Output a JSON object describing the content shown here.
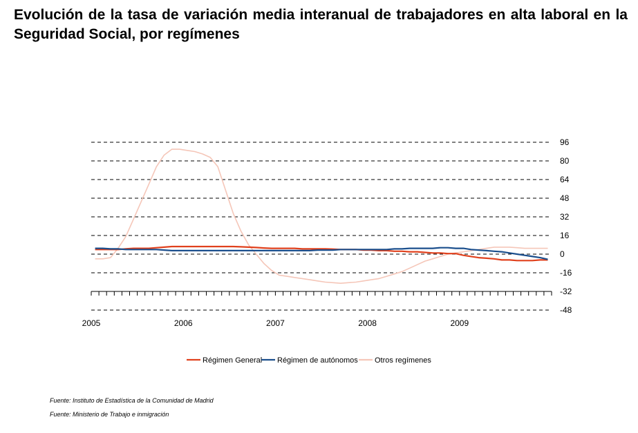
{
  "title": "Evolución de la tasa de variación media interanual de trabajadores en alta laboral en la Seguridad Social, por  regímenes",
  "sources": [
    "Fuente: Instituto de Estadística de la Comunidad de Madrid",
    "Fuente: Ministerio de Trabajo e inmigración"
  ],
  "chart_data": {
    "type": "line",
    "title": "Evolución de la tasa de variación media interanual de trabajadores en alta laboral en la Seguridad Social, por  regímenes",
    "xlabel": "",
    "ylabel": "",
    "ylim": [
      -48,
      96
    ],
    "yticks": [
      96,
      80,
      64,
      48,
      32,
      16,
      0,
      -16,
      -32,
      -48
    ],
    "y_axis_side": "right",
    "grid": true,
    "legend_position": "bottom",
    "x_range": [
      "2005-01",
      "2009-12"
    ],
    "x_tick_labels": [
      "2005",
      "2006",
      "2007",
      "2008",
      "2009"
    ],
    "x": [
      "2005-01",
      "2005-02",
      "2005-03",
      "2005-04",
      "2005-05",
      "2005-06",
      "2005-07",
      "2005-08",
      "2005-09",
      "2005-10",
      "2005-11",
      "2005-12",
      "2006-01",
      "2006-02",
      "2006-03",
      "2006-04",
      "2006-05",
      "2006-06",
      "2006-07",
      "2006-08",
      "2006-09",
      "2006-10",
      "2006-11",
      "2006-12",
      "2007-01",
      "2007-02",
      "2007-03",
      "2007-04",
      "2007-05",
      "2007-06",
      "2007-07",
      "2007-08",
      "2007-09",
      "2007-10",
      "2007-11",
      "2007-12",
      "2008-01",
      "2008-02",
      "2008-03",
      "2008-04",
      "2008-05",
      "2008-06",
      "2008-07",
      "2008-08",
      "2008-09",
      "2008-10",
      "2008-11",
      "2008-12",
      "2009-01",
      "2009-02",
      "2009-03",
      "2009-04",
      "2009-05",
      "2009-06",
      "2009-07",
      "2009-08",
      "2009-09",
      "2009-10",
      "2009-11",
      "2009-12"
    ],
    "series": [
      {
        "name": "Régimen General",
        "color": "#e0401c",
        "values": [
          4,
          4,
          4,
          4,
          4.5,
          5,
          5,
          5,
          5.5,
          6,
          6.5,
          6.5,
          6.5,
          6.5,
          6.5,
          6.5,
          6.5,
          6.5,
          6.5,
          6.3,
          6,
          5.7,
          5.3,
          5,
          5,
          5,
          5,
          4.5,
          4.5,
          4.5,
          4.5,
          4.3,
          4,
          4,
          4,
          3.5,
          3.5,
          3,
          3,
          2.5,
          2.5,
          2,
          2,
          1.5,
          1,
          1,
          0.5,
          0.5,
          -1,
          -2,
          -3,
          -3.5,
          -4,
          -5,
          -5,
          -5.5,
          -5.5,
          -5.5,
          -5,
          -5
        ]
      },
      {
        "name": "Régimen de autónomos",
        "color": "#1a4e8c",
        "values": [
          5,
          5,
          4.5,
          4.5,
          4,
          4,
          4,
          4,
          4,
          3.5,
          3,
          3,
          3,
          3,
          3,
          3,
          3,
          3,
          3,
          3,
          3,
          3,
          3,
          3,
          3,
          3,
          3,
          3,
          3,
          3.5,
          3.5,
          3.5,
          4,
          4,
          4,
          4,
          4,
          4,
          4,
          4.5,
          4.5,
          5,
          5,
          5,
          5,
          5.5,
          5.5,
          5,
          5,
          4,
          3.5,
          3,
          2.5,
          2,
          1,
          0,
          -1,
          -2,
          -3,
          -4.5
        ]
      },
      {
        "name": "Otros regímenes",
        "color": "#f5c6b8",
        "values": [
          -4,
          -4,
          -3,
          5,
          15,
          30,
          45,
          60,
          75,
          85,
          90,
          90,
          89,
          88,
          86,
          83,
          75,
          55,
          35,
          20,
          8,
          0,
          -8,
          -14,
          -18,
          -19,
          -20,
          -21,
          -22,
          -23,
          -24,
          -24.5,
          -25,
          -24.5,
          -24,
          -23,
          -22,
          -21,
          -19,
          -17,
          -15,
          -12,
          -9,
          -6,
          -4,
          -2,
          0,
          1,
          2,
          3,
          4,
          5,
          6,
          6,
          6,
          5.5,
          5,
          5,
          5,
          5
        ]
      }
    ]
  }
}
